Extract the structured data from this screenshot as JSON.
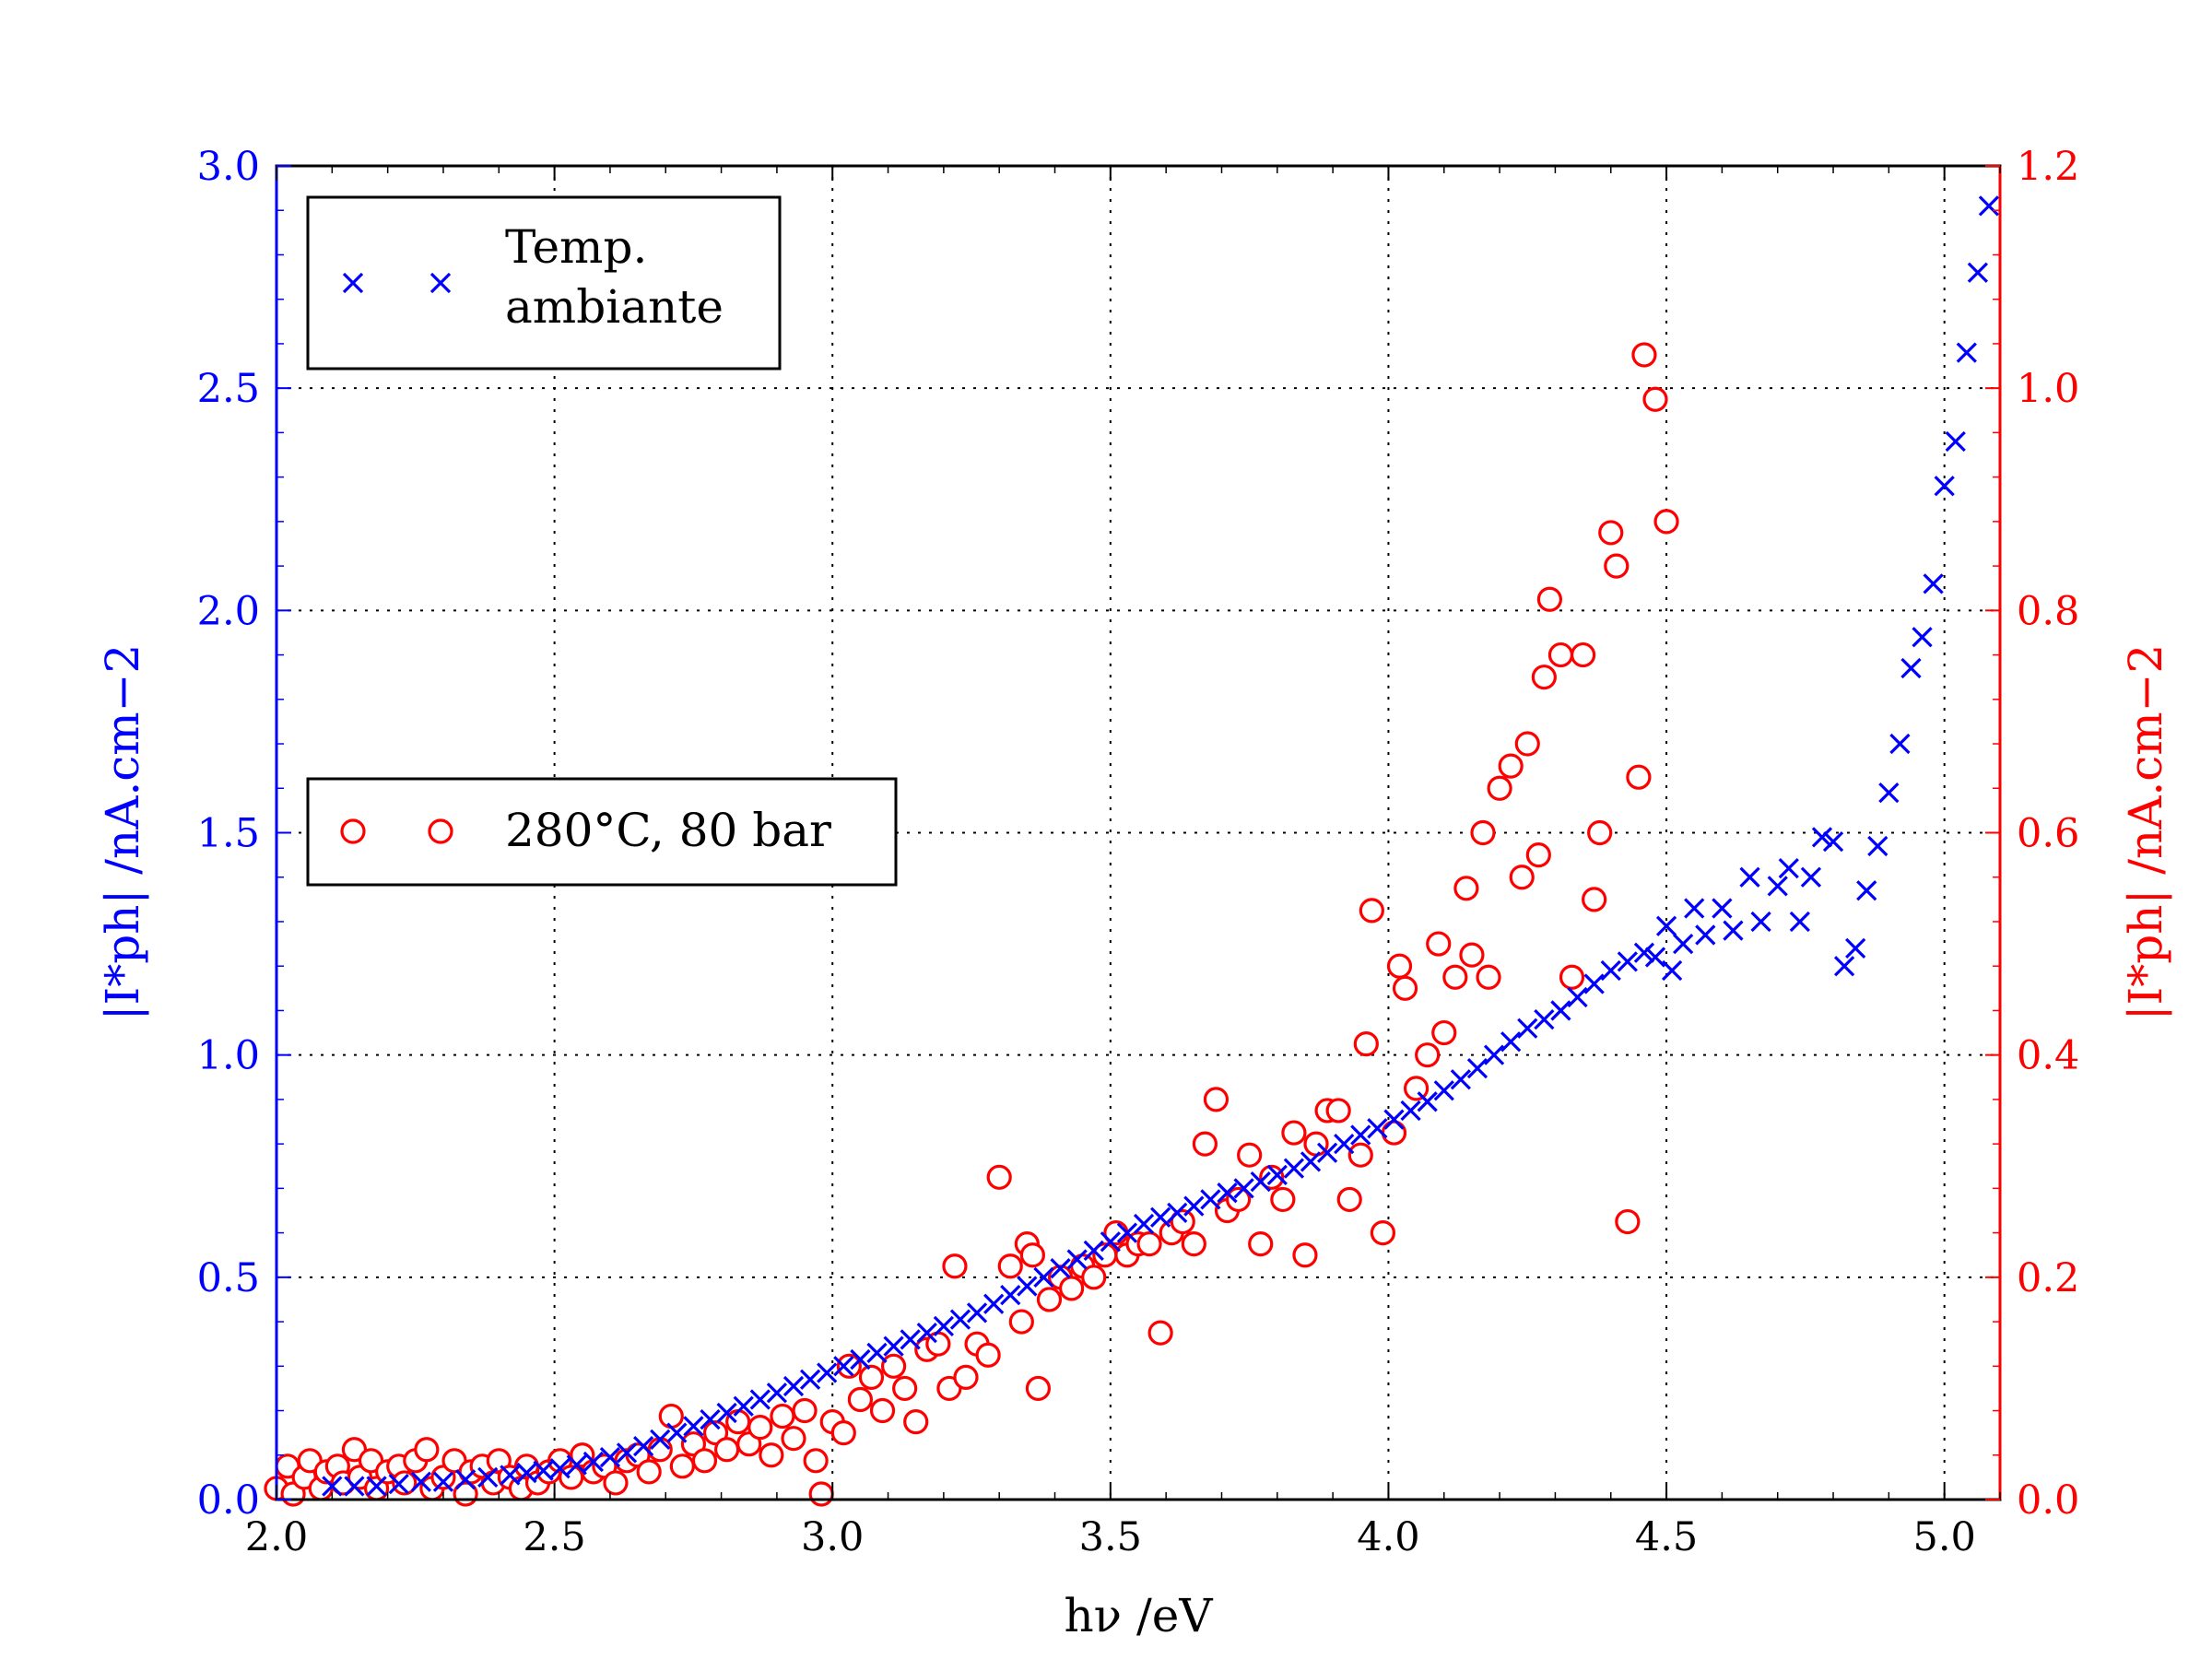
{
  "chart_data": {
    "type": "scatter",
    "title": "",
    "xlabel": "hν /eV",
    "ylabel_left": "|I*ph| /nA.cm−2",
    "ylabel_right": "|I*ph| /nA.cm−2",
    "xlim": [
      2.0,
      5.1
    ],
    "ylim_left": [
      0.0,
      3.0
    ],
    "ylim_right": [
      0.0,
      1.2
    ],
    "x_ticks": [
      "2.0",
      "2.5",
      "3.0",
      "3.5",
      "4.0",
      "4.5",
      "5.0"
    ],
    "y_left_ticks": [
      "0.0",
      "0.5",
      "1.0",
      "1.5",
      "2.0",
      "2.5",
      "3.0"
    ],
    "y_right_ticks": [
      "0.0",
      "0.2",
      "0.4",
      "0.6",
      "0.8",
      "1.0",
      "1.2"
    ],
    "grid": true,
    "colors": {
      "left_axis": "#0000ff",
      "right_axis": "#ff0000",
      "frame": "#000000"
    },
    "legends": [
      {
        "name": "Temp. ambiante",
        "lines": [
          "Temp.",
          "ambiante"
        ],
        "marker": "x",
        "color": "#0000ff",
        "placement": "top-left"
      },
      {
        "name": "280°C, 80 bar",
        "lines": [
          "280°C, 80 bar"
        ],
        "marker": "o",
        "color": "#ff0000",
        "placement": "center-left"
      }
    ],
    "series": [
      {
        "name": "Temp. ambiante",
        "axis": "left",
        "marker": "x",
        "color": "#0000ff",
        "points": [
          [
            2.1,
            0.03
          ],
          [
            2.14,
            0.03
          ],
          [
            2.18,
            0.03
          ],
          [
            2.22,
            0.035
          ],
          [
            2.26,
            0.04
          ],
          [
            2.3,
            0.04
          ],
          [
            2.34,
            0.045
          ],
          [
            2.38,
            0.05
          ],
          [
            2.42,
            0.055
          ],
          [
            2.45,
            0.06
          ],
          [
            2.48,
            0.065
          ],
          [
            2.51,
            0.07
          ],
          [
            2.54,
            0.078
          ],
          [
            2.57,
            0.085
          ],
          [
            2.6,
            0.095
          ],
          [
            2.63,
            0.105
          ],
          [
            2.66,
            0.12
          ],
          [
            2.69,
            0.135
          ],
          [
            2.72,
            0.15
          ],
          [
            2.75,
            0.165
          ],
          [
            2.78,
            0.18
          ],
          [
            2.81,
            0.195
          ],
          [
            2.84,
            0.21
          ],
          [
            2.87,
            0.225
          ],
          [
            2.9,
            0.24
          ],
          [
            2.93,
            0.255
          ],
          [
            2.96,
            0.27
          ],
          [
            2.99,
            0.285
          ],
          [
            3.02,
            0.3
          ],
          [
            3.05,
            0.315
          ],
          [
            3.08,
            0.33
          ],
          [
            3.11,
            0.345
          ],
          [
            3.14,
            0.36
          ],
          [
            3.17,
            0.375
          ],
          [
            3.2,
            0.39
          ],
          [
            3.23,
            0.405
          ],
          [
            3.26,
            0.42
          ],
          [
            3.29,
            0.44
          ],
          [
            3.32,
            0.46
          ],
          [
            3.35,
            0.48
          ],
          [
            3.38,
            0.5
          ],
          [
            3.41,
            0.52
          ],
          [
            3.44,
            0.54
          ],
          [
            3.47,
            0.56
          ],
          [
            3.5,
            0.58
          ],
          [
            3.53,
            0.6
          ],
          [
            3.56,
            0.62
          ],
          [
            3.59,
            0.635
          ],
          [
            3.62,
            0.645
          ],
          [
            3.65,
            0.66
          ],
          [
            3.68,
            0.675
          ],
          [
            3.71,
            0.69
          ],
          [
            3.74,
            0.7
          ],
          [
            3.77,
            0.715
          ],
          [
            3.8,
            0.73
          ],
          [
            3.83,
            0.745
          ],
          [
            3.86,
            0.76
          ],
          [
            3.89,
            0.78
          ],
          [
            3.92,
            0.8
          ],
          [
            3.95,
            0.82
          ],
          [
            3.98,
            0.835
          ],
          [
            4.01,
            0.855
          ],
          [
            4.04,
            0.875
          ],
          [
            4.07,
            0.895
          ],
          [
            4.1,
            0.92
          ],
          [
            4.13,
            0.945
          ],
          [
            4.16,
            0.97
          ],
          [
            4.19,
            1.0
          ],
          [
            4.22,
            1.03
          ],
          [
            4.25,
            1.06
          ],
          [
            4.28,
            1.08
          ],
          [
            4.31,
            1.1
          ],
          [
            4.34,
            1.13
          ],
          [
            4.37,
            1.16
          ],
          [
            4.4,
            1.19
          ],
          [
            4.43,
            1.21
          ],
          [
            4.46,
            1.23
          ],
          [
            4.48,
            1.22
          ],
          [
            4.5,
            1.29
          ],
          [
            4.51,
            1.19
          ],
          [
            4.53,
            1.25
          ],
          [
            4.55,
            1.33
          ],
          [
            4.57,
            1.27
          ],
          [
            4.6,
            1.33
          ],
          [
            4.62,
            1.28
          ],
          [
            4.65,
            1.4
          ],
          [
            4.67,
            1.3
          ],
          [
            4.7,
            1.38
          ],
          [
            4.72,
            1.42
          ],
          [
            4.74,
            1.3
          ],
          [
            4.76,
            1.4
          ],
          [
            4.78,
            1.49
          ],
          [
            4.8,
            1.48
          ],
          [
            4.82,
            1.2
          ],
          [
            4.84,
            1.24
          ],
          [
            4.86,
            1.37
          ],
          [
            4.88,
            1.47
          ],
          [
            4.9,
            1.59
          ],
          [
            4.92,
            1.7
          ],
          [
            4.94,
            1.87
          ],
          [
            4.96,
            1.94
          ],
          [
            4.98,
            2.06
          ],
          [
            5.0,
            2.28
          ],
          [
            5.02,
            2.38
          ],
          [
            5.04,
            2.58
          ],
          [
            5.06,
            2.76
          ],
          [
            5.08,
            2.91
          ]
        ]
      },
      {
        "name": "280°C, 80 bar",
        "axis": "right",
        "marker": "o",
        "color": "#ff0000",
        "points": [
          [
            2.0,
            0.01
          ],
          [
            2.02,
            0.03
          ],
          [
            2.03,
            0.005
          ],
          [
            2.05,
            0.02
          ],
          [
            2.06,
            0.035
          ],
          [
            2.08,
            0.01
          ],
          [
            2.09,
            0.025
          ],
          [
            2.11,
            0.03
          ],
          [
            2.12,
            0.015
          ],
          [
            2.14,
            0.045
          ],
          [
            2.15,
            0.02
          ],
          [
            2.17,
            0.035
          ],
          [
            2.18,
            0.01
          ],
          [
            2.2,
            0.025
          ],
          [
            2.22,
            0.03
          ],
          [
            2.23,
            0.015
          ],
          [
            2.25,
            0.035
          ],
          [
            2.27,
            0.045
          ],
          [
            2.28,
            0.01
          ],
          [
            2.3,
            0.02
          ],
          [
            2.32,
            0.035
          ],
          [
            2.34,
            0.005
          ],
          [
            2.35,
            0.025
          ],
          [
            2.37,
            0.03
          ],
          [
            2.39,
            0.015
          ],
          [
            2.4,
            0.035
          ],
          [
            2.42,
            0.02
          ],
          [
            2.44,
            0.01
          ],
          [
            2.45,
            0.03
          ],
          [
            2.47,
            0.015
          ],
          [
            2.49,
            0.025
          ],
          [
            2.51,
            0.035
          ],
          [
            2.53,
            0.02
          ],
          [
            2.55,
            0.04
          ],
          [
            2.57,
            0.025
          ],
          [
            2.59,
            0.03
          ],
          [
            2.61,
            0.015
          ],
          [
            2.63,
            0.035
          ],
          [
            2.65,
            0.04
          ],
          [
            2.67,
            0.025
          ],
          [
            2.69,
            0.045
          ],
          [
            2.71,
            0.075
          ],
          [
            2.73,
            0.03
          ],
          [
            2.75,
            0.05
          ],
          [
            2.77,
            0.035
          ],
          [
            2.79,
            0.06
          ],
          [
            2.81,
            0.045
          ],
          [
            2.83,
            0.07
          ],
          [
            2.85,
            0.05
          ],
          [
            2.87,
            0.065
          ],
          [
            2.89,
            0.04
          ],
          [
            2.91,
            0.075
          ],
          [
            2.93,
            0.055
          ],
          [
            2.95,
            0.08
          ],
          [
            2.97,
            0.035
          ],
          [
            2.98,
            0.005
          ],
          [
            3.0,
            0.07
          ],
          [
            3.02,
            0.06
          ],
          [
            3.03,
            0.12
          ],
          [
            3.05,
            0.09
          ],
          [
            3.07,
            0.11
          ],
          [
            3.09,
            0.08
          ],
          [
            3.11,
            0.12
          ],
          [
            3.13,
            0.1
          ],
          [
            3.15,
            0.07
          ],
          [
            3.17,
            0.135
          ],
          [
            3.19,
            0.14
          ],
          [
            3.21,
            0.1
          ],
          [
            3.22,
            0.21
          ],
          [
            3.24,
            0.11
          ],
          [
            3.26,
            0.14
          ],
          [
            3.28,
            0.13
          ],
          [
            3.3,
            0.29
          ],
          [
            3.32,
            0.21
          ],
          [
            3.34,
            0.16
          ],
          [
            3.35,
            0.23
          ],
          [
            3.36,
            0.22
          ],
          [
            3.37,
            0.1
          ],
          [
            3.39,
            0.18
          ],
          [
            3.41,
            0.2
          ],
          [
            3.43,
            0.19
          ],
          [
            3.45,
            0.21
          ],
          [
            3.47,
            0.2
          ],
          [
            3.49,
            0.22
          ],
          [
            3.51,
            0.24
          ],
          [
            3.53,
            0.22
          ],
          [
            3.55,
            0.23
          ],
          [
            3.57,
            0.23
          ],
          [
            3.59,
            0.15
          ],
          [
            3.61,
            0.24
          ],
          [
            3.63,
            0.25
          ],
          [
            3.65,
            0.23
          ],
          [
            3.67,
            0.32
          ],
          [
            3.69,
            0.36
          ],
          [
            3.71,
            0.26
          ],
          [
            3.73,
            0.27
          ],
          [
            3.75,
            0.31
          ],
          [
            3.77,
            0.23
          ],
          [
            3.79,
            0.29
          ],
          [
            3.81,
            0.27
          ],
          [
            3.83,
            0.33
          ],
          [
            3.85,
            0.22
          ],
          [
            3.87,
            0.32
          ],
          [
            3.89,
            0.35
          ],
          [
            3.91,
            0.35
          ],
          [
            3.93,
            0.27
          ],
          [
            3.95,
            0.31
          ],
          [
            3.96,
            0.41
          ],
          [
            3.97,
            0.53
          ],
          [
            3.99,
            0.24
          ],
          [
            4.01,
            0.33
          ],
          [
            4.02,
            0.48
          ],
          [
            4.03,
            0.46
          ],
          [
            4.05,
            0.37
          ],
          [
            4.07,
            0.4
          ],
          [
            4.09,
            0.5
          ],
          [
            4.1,
            0.42
          ],
          [
            4.12,
            0.47
          ],
          [
            4.14,
            0.55
          ],
          [
            4.15,
            0.49
          ],
          [
            4.17,
            0.6
          ],
          [
            4.18,
            0.47
          ],
          [
            4.2,
            0.64
          ],
          [
            4.22,
            0.66
          ],
          [
            4.24,
            0.56
          ],
          [
            4.25,
            0.68
          ],
          [
            4.27,
            0.58
          ],
          [
            4.28,
            0.74
          ],
          [
            4.29,
            0.81
          ],
          [
            4.31,
            0.76
          ],
          [
            4.33,
            0.47
          ],
          [
            4.35,
            0.76
          ],
          [
            4.37,
            0.54
          ],
          [
            4.38,
            0.6
          ],
          [
            4.4,
            0.87
          ],
          [
            4.41,
            0.84
          ],
          [
            4.43,
            0.25
          ],
          [
            4.45,
            0.65
          ],
          [
            4.46,
            1.03
          ],
          [
            4.48,
            0.99
          ],
          [
            4.5,
            0.88
          ]
        ]
      }
    ]
  }
}
